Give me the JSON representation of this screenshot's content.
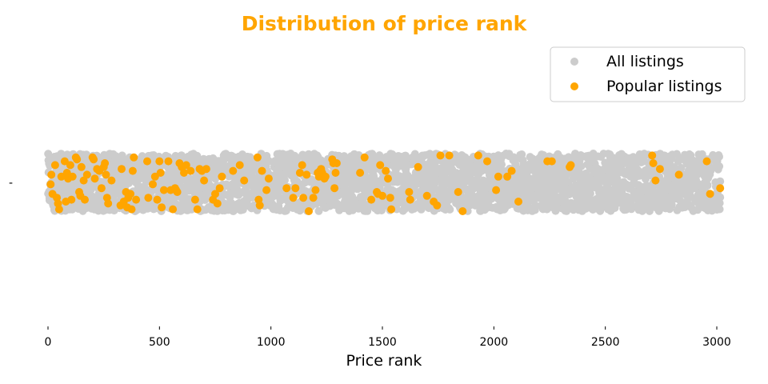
{
  "chart_data": {
    "type": "scatter",
    "title": "Distribution of price rank",
    "xlabel": "Price rank",
    "ylabel": "",
    "xlim": [
      -30,
      3030
    ],
    "xticks": [
      0,
      500,
      1000,
      1500,
      2000,
      2500,
      3000
    ],
    "ytick_label": "-",
    "legend": {
      "placement": "top-right",
      "entries": [
        "All listings",
        "Popular listings"
      ]
    },
    "grid": false,
    "series": [
      {
        "name": "All listings",
        "color": "#cccccc",
        "x_range": [
          0,
          3015
        ],
        "note_values": "dense strip of points covering every rank from 0 to about 3015"
      },
      {
        "name": "Popular listings",
        "color": "#FFA500",
        "x": [
          12,
          15,
          20,
          32,
          40,
          45,
          50,
          60,
          75,
          80,
          85,
          90,
          100,
          105,
          110,
          125,
          130,
          140,
          145,
          150,
          160,
          165,
          175,
          200,
          205,
          210,
          220,
          230,
          240,
          250,
          255,
          260,
          265,
          270,
          285,
          325,
          330,
          340,
          350,
          355,
          360,
          370,
          375,
          380,
          385,
          395,
          445,
          450,
          470,
          480,
          490,
          500,
          505,
          510,
          520,
          540,
          550,
          560,
          570,
          575,
          580,
          590,
          600,
          610,
          620,
          640,
          660,
          670,
          680,
          690,
          700,
          710,
          740,
          750,
          760,
          770,
          780,
          830,
          860,
          880,
          940,
          945,
          950,
          960,
          980,
          990,
          1070,
          1100,
          1110,
          1130,
          1140,
          1145,
          1160,
          1170,
          1190,
          1200,
          1210,
          1215,
          1220,
          1225,
          1230,
          1240,
          1245,
          1275,
          1280,
          1285,
          1290,
          1295,
          1400,
          1420,
          1450,
          1475,
          1480,
          1490,
          1500,
          1515,
          1525,
          1535,
          1540,
          1620,
          1625,
          1660,
          1700,
          1730,
          1745,
          1760,
          1800,
          1840,
          1860,
          1930,
          1970,
          2010,
          2020,
          2060,
          2080,
          2110,
          2240,
          2260,
          2340,
          2345,
          2710,
          2715,
          2725,
          2745,
          2830,
          2955,
          2970,
          3015
        ],
        "y": [
          -0.01,
          0.04,
          -0.06,
          0.09,
          -0.08,
          -0.11,
          -0.14,
          0.03,
          0.11,
          -0.1,
          0.05,
          0.02,
          0.09,
          -0.09,
          0.03,
          0.13,
          0.12,
          -0.05,
          -0.07,
          0.08,
          0.01,
          -0.09,
          0.04,
          0.13,
          0.12,
          0.02,
          0.07,
          0.06,
          -0.03,
          0.08,
          0.1,
          0.04,
          -0.08,
          -0.11,
          0.01,
          -0.12,
          0.07,
          -0.1,
          -0.05,
          -0.13,
          -0.08,
          -0.06,
          -0.14,
          0.06,
          0.13,
          -0.09,
          0.11,
          -0.08,
          -0.01,
          0.03,
          -0.09,
          0.11,
          0.05,
          -0.13,
          -0.04,
          0.11,
          -0.04,
          -0.14,
          -0.03,
          -0.04,
          -0.05,
          0.1,
          0.08,
          0.05,
          0.09,
          0.06,
          -0.09,
          -0.14,
          0.07,
          0.06,
          0.01,
          0.07,
          -0.09,
          -0.06,
          -0.11,
          -0.03,
          0.03,
          0.06,
          0.09,
          0.01,
          0.13,
          -0.09,
          -0.12,
          0.06,
          -0.04,
          0.02,
          -0.03,
          -0.08,
          -0.03,
          0.05,
          0.09,
          -0.08,
          0.04,
          -0.15,
          -0.08,
          -0.04,
          0.05,
          0.03,
          0.06,
          0.07,
          0.05,
          0.02,
          0.03,
          0.12,
          0.1,
          -0.03,
          0.05,
          0.1,
          0.05,
          0.13,
          -0.09,
          -0.05,
          -0.06,
          0.09,
          -0.07,
          0.06,
          0.02,
          -0.08,
          -0.14,
          -0.05,
          -0.09,
          0.08,
          -0.07,
          -0.1,
          -0.12,
          0.14,
          0.14,
          -0.05,
          -0.15,
          0.14,
          0.11,
          -0.04,
          0.03,
          0.03,
          0.06,
          -0.1,
          0.11,
          0.11,
          0.08,
          0.09,
          0.14,
          0.1,
          0.01,
          0.07,
          0.04,
          0.11,
          -0.06,
          -0.03
        ],
        "note_y": "jitter only; the y axis has no data meaning"
      }
    ]
  }
}
